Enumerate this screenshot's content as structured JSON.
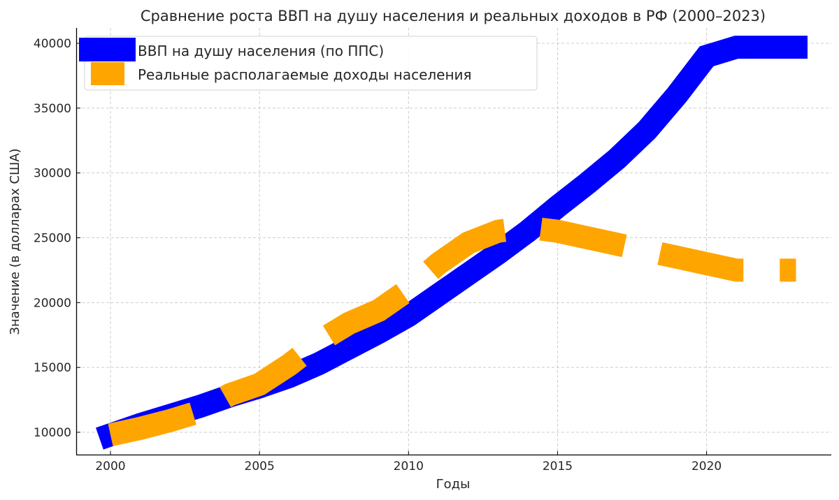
{
  "chart_data": {
    "type": "line",
    "title": "Сравнение роста ВВП на душу населения и реальных доходов в РФ (2000–2023)",
    "xlabel": "Годы",
    "ylabel": "Значение (в долларах США)",
    "x": [
      2000,
      2001,
      2002,
      2003,
      2004,
      2005,
      2006,
      2007,
      2008,
      2009,
      2010,
      2011,
      2012,
      2013,
      2014,
      2015,
      2016,
      2017,
      2018,
      2019,
      2020,
      2021,
      2022,
      2023
    ],
    "series": [
      {
        "name": "ВВП на душу населения (по ППС)",
        "color": "#0000ff",
        "style": "solid",
        "values": [
          9800,
          10600,
          11300,
          12000,
          12800,
          13500,
          14300,
          15300,
          16500,
          17700,
          19000,
          20600,
          22200,
          23800,
          25500,
          27400,
          29200,
          31100,
          33300,
          36000,
          39000,
          39700,
          39700,
          39700
        ]
      },
      {
        "name": "Реальные располагаемые доходы населения",
        "color": "#ffa500",
        "style": "dashed",
        "values": [
          9800,
          10300,
          10900,
          11600,
          12900,
          13700,
          15200,
          17000,
          18400,
          19400,
          21000,
          23000,
          24600,
          25500,
          25800,
          25500,
          25000,
          24500,
          24000,
          23500,
          23000,
          22500,
          22500,
          22500
        ]
      }
    ],
    "xticks": [
      "2000",
      "2005",
      "2010",
      "2015",
      "2020"
    ],
    "yticks": [
      "10000",
      "15000",
      "20000",
      "25000",
      "30000",
      "35000",
      "40000"
    ],
    "xlim": [
      1998.9,
      2024.3
    ],
    "ylim": [
      8300,
      41200
    ],
    "grid": true,
    "legend_position": "upper left"
  },
  "legend": {
    "items": [
      {
        "label": "ВВП на душу населения (по ППС)",
        "color": "#0000ff"
      },
      {
        "label": "Реальные располагаемые доходы населения",
        "color": "#ffa500"
      }
    ]
  }
}
